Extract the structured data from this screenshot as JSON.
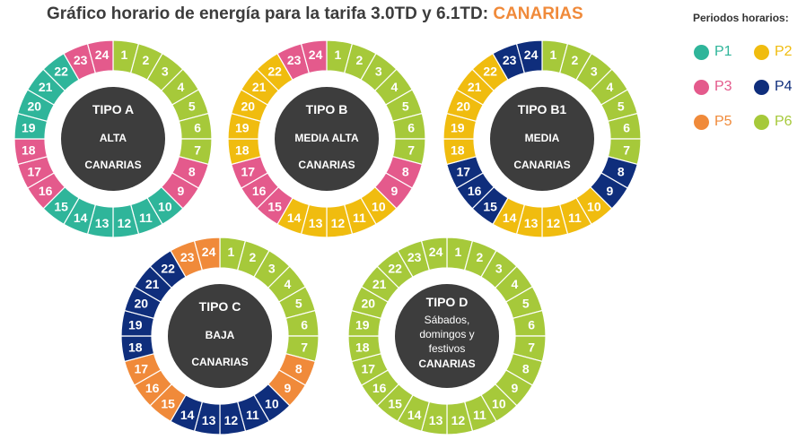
{
  "title": {
    "main": "Gráfico horario de energía para la tarifa 3.0TD y 6.1TD: ",
    "accent": "CANARIAS"
  },
  "colors": {
    "P1": "#2fb59a",
    "P2": "#f0bc0f",
    "P3": "#e45a8c",
    "P4": "#0f2e7c",
    "P5": "#f08a3a",
    "P6": "#a6c93a",
    "center": "#3d3d3d",
    "title_accent": "#f08a3a"
  },
  "legend": {
    "title": "Periodos horarios:",
    "items": [
      {
        "key": "P1",
        "label": "P1"
      },
      {
        "key": "P2",
        "label": "P2"
      },
      {
        "key": "P3",
        "label": "P3"
      },
      {
        "key": "P4",
        "label": "P4"
      },
      {
        "key": "P5",
        "label": "P5"
      },
      {
        "key": "P6",
        "label": "P6"
      }
    ]
  },
  "wheels": [
    {
      "id": "tipo-a",
      "lines": [
        "TIPO A",
        "ALTA",
        "CANARIAS"
      ],
      "hours": [
        "P6",
        "P6",
        "P6",
        "P6",
        "P6",
        "P6",
        "P6",
        "P3",
        "P3",
        "P1",
        "P1",
        "P1",
        "P1",
        "P1",
        "P1",
        "P3",
        "P3",
        "P3",
        "P1",
        "P1",
        "P1",
        "P1",
        "P3",
        "P3"
      ]
    },
    {
      "id": "tipo-b",
      "lines": [
        "TIPO B",
        "MEDIA ALTA",
        "CANARIAS"
      ],
      "hours": [
        "P6",
        "P6",
        "P6",
        "P6",
        "P6",
        "P6",
        "P6",
        "P3",
        "P3",
        "P2",
        "P2",
        "P2",
        "P2",
        "P2",
        "P3",
        "P3",
        "P3",
        "P2",
        "P2",
        "P2",
        "P2",
        "P2",
        "P3",
        "P3"
      ]
    },
    {
      "id": "tipo-b1",
      "lines": [
        "TIPO B1",
        "MEDIA",
        "CANARIAS"
      ],
      "hours": [
        "P6",
        "P6",
        "P6",
        "P6",
        "P6",
        "P6",
        "P6",
        "P4",
        "P4",
        "P2",
        "P2",
        "P2",
        "P2",
        "P2",
        "P4",
        "P4",
        "P4",
        "P2",
        "P2",
        "P2",
        "P2",
        "P2",
        "P4",
        "P4"
      ]
    },
    {
      "id": "tipo-c",
      "lines": [
        "TIPO C",
        "BAJA",
        "CANARIAS"
      ],
      "hours": [
        "P6",
        "P6",
        "P6",
        "P6",
        "P6",
        "P6",
        "P6",
        "P5",
        "P5",
        "P4",
        "P4",
        "P4",
        "P4",
        "P4",
        "P5",
        "P5",
        "P5",
        "P4",
        "P4",
        "P4",
        "P4",
        "P4",
        "P5",
        "P5"
      ]
    },
    {
      "id": "tipo-d",
      "lines": [
        "TIPO D",
        "Sábados,",
        "domingos y",
        "festivos",
        "CANARIAS"
      ],
      "hours": [
        "P6",
        "P6",
        "P6",
        "P6",
        "P6",
        "P6",
        "P6",
        "P6",
        "P6",
        "P6",
        "P6",
        "P6",
        "P6",
        "P6",
        "P6",
        "P6",
        "P6",
        "P6",
        "P6",
        "P6",
        "P6",
        "P6",
        "P6",
        "P6"
      ]
    }
  ]
}
